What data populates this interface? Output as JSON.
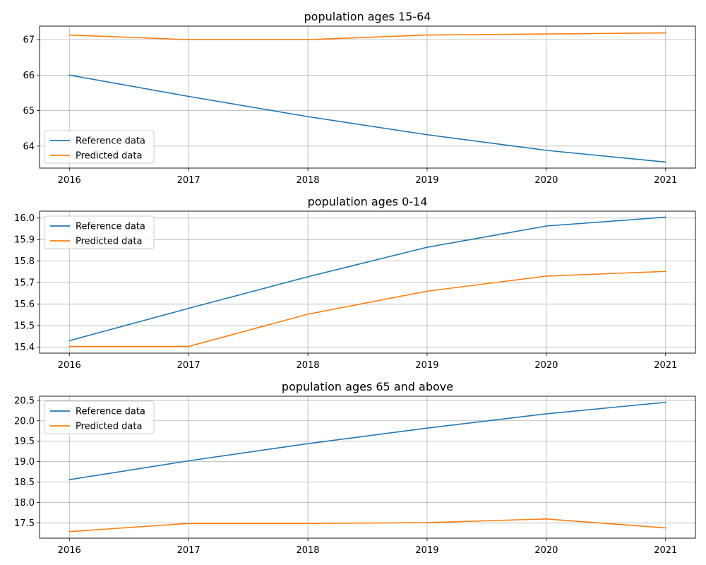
{
  "figure_title": "",
  "legend_labels": [
    "Reference data",
    "Predicted data"
  ],
  "colors": {
    "reference": "#1f77b4",
    "predicted": "#ff7f0e",
    "grid": "#b0b0b0",
    "axes": "#000000"
  },
  "chart_data": [
    {
      "type": "line",
      "title": "population ages 15-64",
      "xlabel": "",
      "ylabel": "",
      "x": [
        2016,
        2017,
        2018,
        2019,
        2020,
        2021
      ],
      "xlim": [
        2015.75,
        2021.25
      ],
      "ylim": [
        63.38,
        67.38
      ],
      "xticks": [
        "2016",
        "2017",
        "2018",
        "2019",
        "2020",
        "2021"
      ],
      "yticks": [
        64,
        65,
        66,
        67
      ],
      "ytick_labels": [
        "64",
        "65",
        "66",
        "67"
      ],
      "grid": true,
      "legend_position": "lower-left",
      "series": [
        {
          "name": "Reference data",
          "values": [
            66.0,
            65.4,
            64.83,
            64.32,
            63.88,
            63.55
          ]
        },
        {
          "name": "Predicted data",
          "values": [
            67.13,
            67.0,
            67.0,
            67.13,
            67.16,
            67.19
          ]
        }
      ]
    },
    {
      "type": "line",
      "title": "population ages 0-14",
      "xlabel": "",
      "ylabel": "",
      "x": [
        2016,
        2017,
        2018,
        2019,
        2020,
        2021
      ],
      "xlim": [
        2015.75,
        2021.25
      ],
      "ylim": [
        15.372,
        16.032
      ],
      "xticks": [
        "2016",
        "2017",
        "2018",
        "2019",
        "2020",
        "2021"
      ],
      "yticks": [
        15.4,
        15.5,
        15.6,
        15.7,
        15.8,
        15.9,
        16.0
      ],
      "ytick_labels": [
        "15.4",
        "15.5",
        "15.6",
        "15.7",
        "15.8",
        "15.9",
        "16.0"
      ],
      "grid": true,
      "legend_position": "upper-left",
      "series": [
        {
          "name": "Reference data",
          "values": [
            15.43,
            15.58,
            15.727,
            15.864,
            15.963,
            16.004
          ]
        },
        {
          "name": "Predicted data",
          "values": [
            15.403,
            15.403,
            15.553,
            15.66,
            15.73,
            15.752
          ]
        }
      ]
    },
    {
      "type": "line",
      "title": "population ages 65 and above",
      "xlabel": "",
      "ylabel": "",
      "x": [
        2016,
        2017,
        2018,
        2019,
        2020,
        2021
      ],
      "xlim": [
        2015.75,
        2021.25
      ],
      "ylim": [
        17.13,
        20.6
      ],
      "xticks": [
        "2016",
        "2017",
        "2018",
        "2019",
        "2020",
        "2021"
      ],
      "yticks": [
        17.5,
        18.0,
        18.5,
        19.0,
        19.5,
        20.0,
        20.5
      ],
      "ytick_labels": [
        "17.5",
        "18.0",
        "18.5",
        "19.0",
        "19.5",
        "20.0",
        "20.5"
      ],
      "grid": true,
      "legend_position": "upper-left",
      "series": [
        {
          "name": "Reference data",
          "values": [
            18.56,
            19.02,
            19.44,
            19.82,
            20.17,
            20.45
          ]
        },
        {
          "name": "Predicted data",
          "values": [
            17.29,
            17.49,
            17.49,
            17.51,
            17.6,
            17.38
          ]
        }
      ]
    }
  ]
}
